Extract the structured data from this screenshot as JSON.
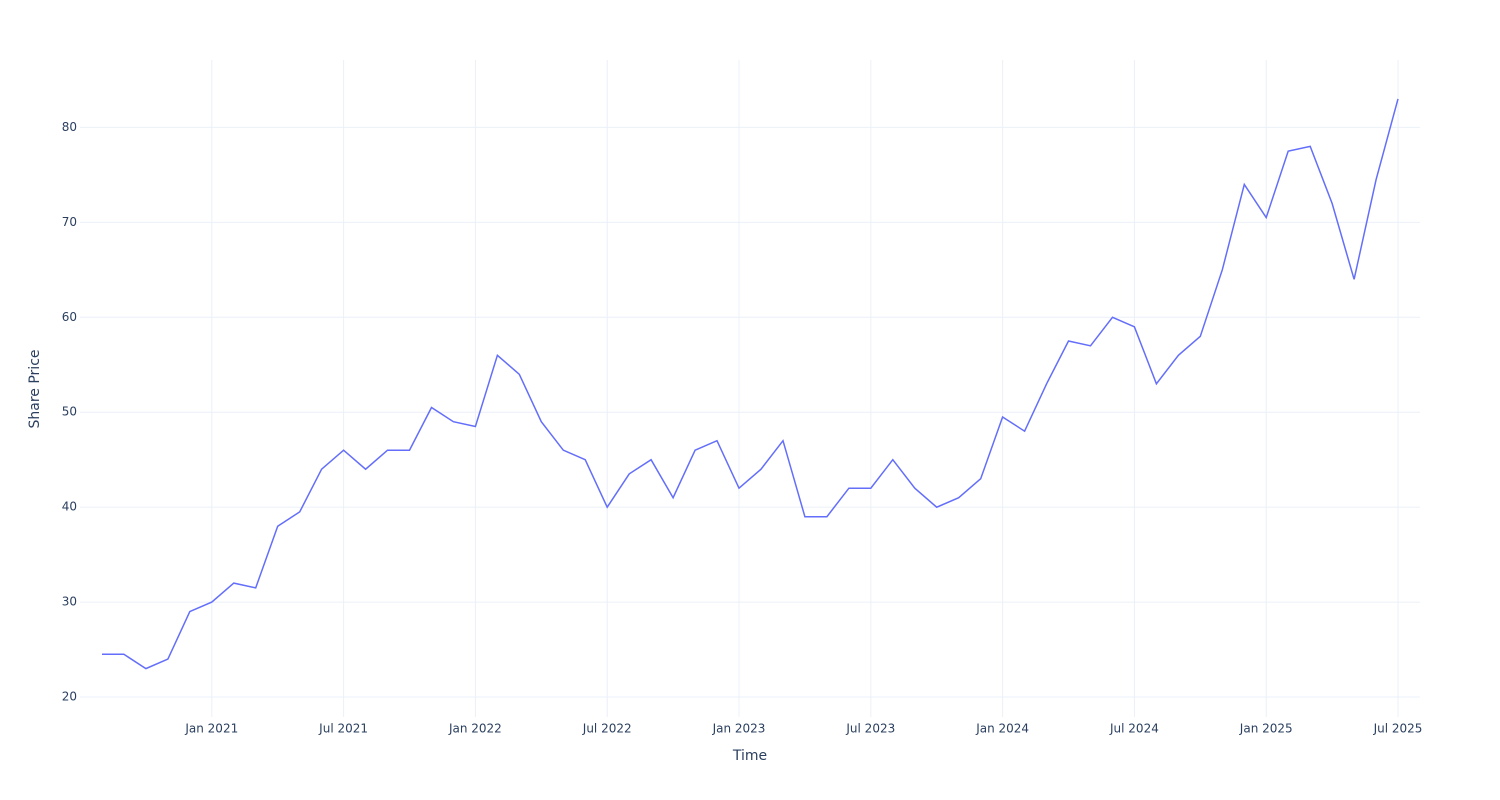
{
  "chart_data": {
    "type": "line",
    "x_label": "Time",
    "y_label": "Share Price",
    "x": [
      "2020-08",
      "2020-09",
      "2020-10",
      "2020-11",
      "2020-12",
      "2021-01",
      "2021-02",
      "2021-03",
      "2021-04",
      "2021-05",
      "2021-06",
      "2021-07",
      "2021-08",
      "2021-09",
      "2021-10",
      "2021-11",
      "2021-12",
      "2022-01",
      "2022-02",
      "2022-03",
      "2022-04",
      "2022-05",
      "2022-06",
      "2022-07",
      "2022-08",
      "2022-09",
      "2022-10",
      "2022-11",
      "2022-12",
      "2023-01",
      "2023-02",
      "2023-03",
      "2023-04",
      "2023-05",
      "2023-06",
      "2023-07",
      "2023-08",
      "2023-09",
      "2023-10",
      "2023-11",
      "2023-12",
      "2024-01",
      "2024-02",
      "2024-03",
      "2024-04",
      "2024-05",
      "2024-06",
      "2024-07",
      "2024-08",
      "2024-09",
      "2024-10",
      "2024-11",
      "2024-12",
      "2025-01",
      "2025-02",
      "2025-03",
      "2025-04",
      "2025-05",
      "2025-06",
      "2025-07"
    ],
    "series": [
      {
        "name": "Share Price",
        "color": "#636efa",
        "values": [
          24.5,
          24.5,
          23,
          24,
          29,
          30,
          32,
          31.5,
          38,
          39.5,
          44,
          46,
          44,
          46,
          46,
          50.5,
          49,
          48.5,
          56,
          54,
          49,
          46,
          45,
          40,
          43.5,
          45,
          41,
          46,
          47,
          42,
          44,
          47,
          39,
          39,
          42,
          42,
          45,
          42,
          40,
          41,
          43,
          49.5,
          48,
          53,
          57.5,
          57,
          60,
          59,
          53,
          56,
          58,
          65,
          74,
          70.5,
          77.5,
          78,
          72,
          64,
          74.5,
          83
        ]
      }
    ],
    "xlim": [
      "2020-07",
      "2025-08"
    ],
    "xticks": [
      {
        "value": "2021-01",
        "label": "Jan 2021"
      },
      {
        "value": "2021-07",
        "label": "Jul 2021"
      },
      {
        "value": "2022-01",
        "label": "Jan 2022"
      },
      {
        "value": "2022-07",
        "label": "Jul 2022"
      },
      {
        "value": "2023-01",
        "label": "Jan 2023"
      },
      {
        "value": "2023-07",
        "label": "Jul 2023"
      },
      {
        "value": "2024-01",
        "label": "Jan 2024"
      },
      {
        "value": "2024-07",
        "label": "Jul 2024"
      },
      {
        "value": "2025-01",
        "label": "Jan 2025"
      },
      {
        "value": "2025-07",
        "label": "Jul 2025"
      }
    ],
    "ylim": [
      17.9,
      87.1
    ],
    "yticks": [
      20,
      30,
      40,
      50,
      60,
      70,
      80
    ],
    "grid": true
  }
}
